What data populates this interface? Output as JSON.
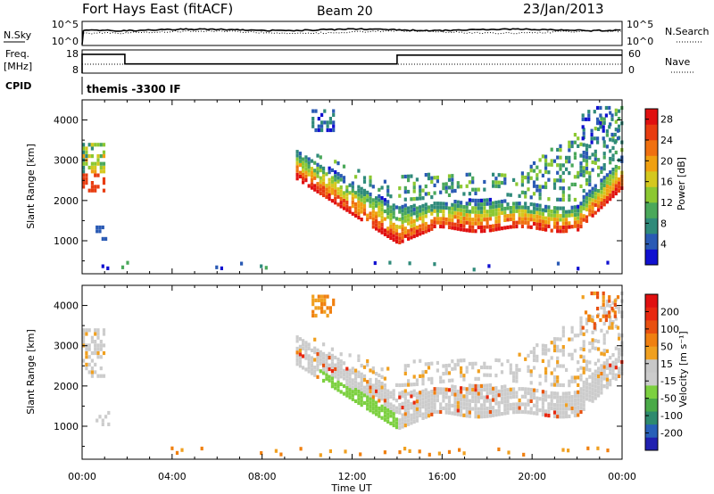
{
  "header": {
    "station": "Fort Hays East (fitACF)",
    "beam": "Beam 20",
    "date": "23/Jan/2013"
  },
  "noise_panel": {
    "left_label": "N.Sky",
    "right_label": "N.Search",
    "left_ticks": [
      "10^5",
      "10^0"
    ],
    "right_ticks": [
      "10^5",
      "10^0"
    ]
  },
  "freq_panel": {
    "left_label_1": "Freq.",
    "left_label_2": "[MHz]",
    "right_label": "Nave",
    "left_ticks": [
      "18",
      "8"
    ],
    "right_ticks": [
      "60",
      "0"
    ],
    "freq_steps": [
      {
        "from_hour": 0.0,
        "to_hour": 1.9,
        "mhz": 17.5
      },
      {
        "from_hour": 1.9,
        "to_hour": 14.0,
        "mhz": 11.5
      },
      {
        "from_hour": 14.0,
        "to_hour": 24.0,
        "mhz": 17.0
      }
    ]
  },
  "cpid_panel": {
    "label": "CPID",
    "program": "themis -3300 IF"
  },
  "chart_data": [
    {
      "type": "heatmap",
      "name": "power",
      "ylabel": "Slant Range [km]",
      "xlabel": "Time UT",
      "xlim_hours": [
        0,
        24
      ],
      "ylim": [
        180,
        4500
      ],
      "y_ticks": [
        1000,
        2000,
        3000,
        4000
      ],
      "x_tick_labels": [
        "00:00",
        "04:00",
        "08:00",
        "12:00",
        "16:00",
        "20:00",
        "00:00"
      ],
      "colorbar": {
        "label": "Power [dB]",
        "ticks": [
          "4",
          "8",
          "12",
          "16",
          "20",
          "24",
          "28"
        ],
        "range": [
          0,
          30
        ],
        "colors": [
          "#1010d0",
          "#2a5ab4",
          "#2f8a7a",
          "#4aa85a",
          "#8cc832",
          "#d4c81e",
          "#f0a010",
          "#f07010",
          "#e83c10",
          "#e01010"
        ]
      }
    },
    {
      "type": "heatmap",
      "name": "velocity",
      "ylabel": "Slant Range [km]",
      "xlabel": "Time UT",
      "xlim_hours": [
        0,
        24
      ],
      "ylim": [
        180,
        4500
      ],
      "y_ticks": [
        1000,
        2000,
        3000,
        4000
      ],
      "x_tick_labels": [
        "00:00",
        "04:00",
        "08:00",
        "12:00",
        "16:00",
        "20:00",
        "00:00"
      ],
      "colorbar": {
        "label": "Velocity [m s⁻¹]",
        "ticks": [
          "200",
          "100",
          "50",
          "15",
          "-15",
          "-50",
          "-100",
          "-200"
        ],
        "colors": [
          "#2020b0",
          "#2860b8",
          "#2e8a6e",
          "#4aaa48",
          "#7cd040",
          "#cccccc",
          "#c8c8c8",
          "#f0a020",
          "#f08010",
          "#e85010",
          "#e82810",
          "#e01010"
        ]
      }
    }
  ],
  "colors": {
    "frame": "#000000",
    "ground_scatter": "#c8c8c8"
  }
}
